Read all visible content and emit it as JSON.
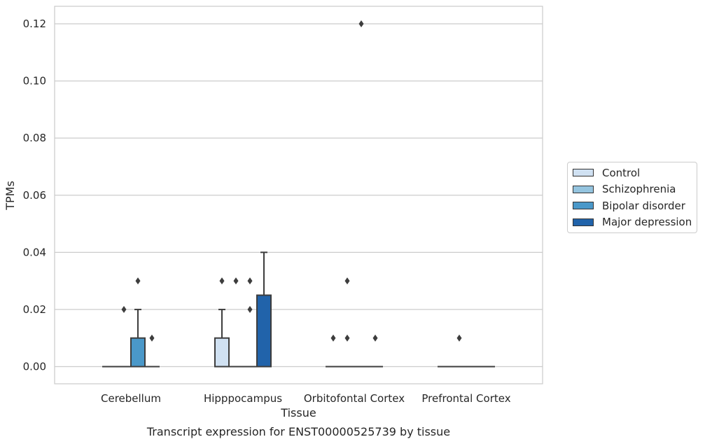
{
  "caption": "Transcript expression for ENST00000525739 by tissue",
  "chart_data": {
    "type": "box",
    "xlabel": "Tissue",
    "ylabel": "TPMs",
    "ylim": [
      -0.006,
      0.126
    ],
    "yticks": [
      0.0,
      0.02,
      0.04,
      0.06,
      0.08,
      0.1,
      0.12
    ],
    "ytick_labels": [
      "0.00",
      "0.02",
      "0.04",
      "0.06",
      "0.08",
      "0.10",
      "0.12"
    ],
    "grid": true,
    "legend_position": "right",
    "categories": [
      "Cerebellum",
      "Hipppocampus",
      "Orbitofontal Cortex",
      "Prefrontal Cortex"
    ],
    "series": [
      {
        "name": "Control",
        "color": "#d0e1f2",
        "boxes": [
          {
            "q1": 0.0,
            "median": 0.0,
            "q3": 0.0,
            "whisker_low": 0.0,
            "whisker_high": 0.0,
            "outliers": []
          },
          {
            "q1": 0.0,
            "median": 0.0,
            "q3": 0.01,
            "whisker_low": 0.0,
            "whisker_high": 0.02,
            "outliers": [
              0.03
            ]
          },
          {
            "q1": 0.0,
            "median": 0.0,
            "q3": 0.0,
            "whisker_low": 0.0,
            "whisker_high": 0.0,
            "outliers": [
              0.01
            ]
          },
          {
            "q1": 0.0,
            "median": 0.0,
            "q3": 0.0,
            "whisker_low": 0.0,
            "whisker_high": 0.0,
            "outliers": []
          }
        ]
      },
      {
        "name": "Schizophrenia",
        "color": "#94c4df",
        "boxes": [
          {
            "q1": 0.0,
            "median": 0.0,
            "q3": 0.0,
            "whisker_low": 0.0,
            "whisker_high": 0.0,
            "outliers": [
              0.02
            ]
          },
          {
            "q1": 0.0,
            "median": 0.0,
            "q3": 0.0,
            "whisker_low": 0.0,
            "whisker_high": 0.0,
            "outliers": [
              0.03
            ]
          },
          {
            "q1": 0.0,
            "median": 0.0,
            "q3": 0.0,
            "whisker_low": 0.0,
            "whisker_high": 0.0,
            "outliers": [
              0.01,
              0.03
            ]
          },
          {
            "q1": 0.0,
            "median": 0.0,
            "q3": 0.0,
            "whisker_low": 0.0,
            "whisker_high": 0.0,
            "outliers": [
              0.01
            ]
          }
        ]
      },
      {
        "name": "Bipolar disorder",
        "color": "#4a98c9",
        "boxes": [
          {
            "q1": 0.0,
            "median": 0.0,
            "q3": 0.01,
            "whisker_low": 0.0,
            "whisker_high": 0.02,
            "outliers": [
              0.03
            ]
          },
          {
            "q1": 0.0,
            "median": 0.0,
            "q3": 0.0,
            "whisker_low": 0.0,
            "whisker_high": 0.0,
            "outliers": [
              0.02,
              0.03
            ]
          },
          {
            "q1": 0.0,
            "median": 0.0,
            "q3": 0.0,
            "whisker_low": 0.0,
            "whisker_high": 0.0,
            "outliers": [
              0.12
            ]
          },
          {
            "q1": 0.0,
            "median": 0.0,
            "q3": 0.0,
            "whisker_low": 0.0,
            "whisker_high": 0.0,
            "outliers": []
          }
        ]
      },
      {
        "name": "Major depression",
        "color": "#2163aa",
        "boxes": [
          {
            "q1": 0.0,
            "median": 0.0,
            "q3": 0.0,
            "whisker_low": 0.0,
            "whisker_high": 0.0,
            "outliers": [
              0.01
            ]
          },
          {
            "q1": 0.0,
            "median": 0.0,
            "q3": 0.025,
            "whisker_low": 0.0,
            "whisker_high": 0.04,
            "outliers": []
          },
          {
            "q1": 0.0,
            "median": 0.0,
            "q3": 0.0,
            "whisker_low": 0.0,
            "whisker_high": 0.0,
            "outliers": [
              0.01
            ]
          },
          {
            "q1": 0.0,
            "median": 0.0,
            "q3": 0.0,
            "whisker_low": 0.0,
            "whisker_high": 0.0,
            "outliers": []
          }
        ]
      }
    ]
  }
}
